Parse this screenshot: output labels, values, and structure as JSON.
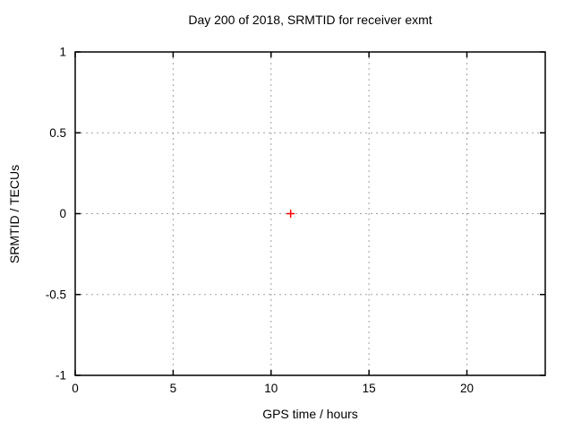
{
  "chart_data": {
    "type": "scatter",
    "title": "Day 200 of 2018, SRMTID for receiver exmt",
    "xlabel": "GPS time / hours",
    "ylabel": "SRMTID / TECUs",
    "xlim": [
      0,
      24
    ],
    "ylim": [
      -1,
      1
    ],
    "xticks": [
      0,
      5,
      10,
      15,
      20
    ],
    "yticks": [
      1,
      0.5,
      0,
      -0.5,
      -1
    ],
    "grid": true,
    "legend": "none",
    "series": [
      {
        "name": "SRMTID",
        "marker": "plus",
        "color": "#ff0000",
        "points": [
          {
            "x": 11,
            "y": 0
          }
        ]
      }
    ]
  },
  "colors": {
    "background": "#ffffff",
    "border": "#000000",
    "grid": "#a0a0a0",
    "text": "#000000",
    "marker": "#ff0000"
  }
}
